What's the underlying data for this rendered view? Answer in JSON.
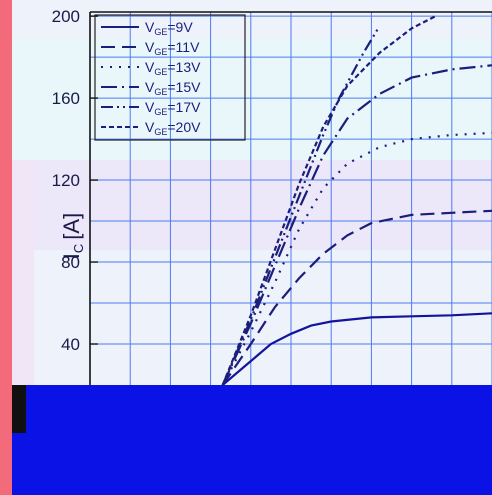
{
  "chart_data": {
    "type": "line",
    "ylabel": "I",
    "ylabel_sub": "C",
    "ylabel_unit": "[A]",
    "ylim": [
      20,
      202
    ],
    "yticks": [
      40,
      80,
      120,
      160,
      200
    ],
    "xlim": [
      0,
      10
    ],
    "grid": true,
    "legend_placement": "top-left",
    "series": [
      {
        "name": "V",
        "sub": "GE",
        "suffix": "=9V",
        "dash": "",
        "x": [
          3.3,
          3.9,
          4.5,
          5.0,
          5.5,
          6.0,
          7.0,
          8.0,
          9.0,
          10.0
        ],
        "y": [
          20,
          30,
          40,
          45,
          49,
          51,
          53,
          53.5,
          54,
          55
        ]
      },
      {
        "name": "V",
        "sub": "GE",
        "suffix": "=11V",
        "dash": "14 7",
        "x": [
          3.3,
          4.0,
          4.6,
          5.2,
          5.8,
          6.4,
          7.0,
          8.0,
          9.0,
          10.0
        ],
        "y": [
          20,
          40,
          58,
          72,
          84,
          93,
          99,
          103,
          104,
          105
        ]
      },
      {
        "name": "V",
        "sub": "GE",
        "suffix": "=13V",
        "dash": "2 7",
        "x": [
          3.3,
          4.0,
          4.6,
          5.2,
          5.8,
          6.4,
          7.2,
          8.0,
          9.0,
          10.0
        ],
        "y": [
          20,
          46,
          70,
          96,
          116,
          128,
          136,
          140,
          142,
          143
        ]
      },
      {
        "name": "V",
        "sub": "GE",
        "suffix": "=15V",
        "dash": "16 5 2 5",
        "x": [
          3.3,
          4.0,
          4.6,
          5.2,
          5.8,
          6.4,
          7.2,
          8.0,
          9.0,
          10.0
        ],
        "y": [
          20,
          50,
          78,
          106,
          132,
          150,
          162,
          170,
          174,
          176
        ]
      },
      {
        "name": "V",
        "sub": "GE",
        "suffix": "=17V",
        "dash": "12 4 2 4 2 4",
        "x": [
          3.3,
          4.0,
          4.6,
          5.2,
          5.8,
          6.2,
          6.8,
          7.2
        ],
        "y": [
          20,
          52,
          82,
          112,
          142,
          160,
          182,
          195
        ]
      },
      {
        "name": "V",
        "sub": "GE",
        "suffix": "=20V",
        "dash": "5 3",
        "x": [
          3.3,
          4.0,
          4.6,
          5.2,
          5.8,
          6.4,
          7.2,
          8.0,
          8.6
        ],
        "y": [
          20,
          54,
          86,
          118,
          146,
          166,
          182,
          194,
          200
        ]
      }
    ]
  }
}
